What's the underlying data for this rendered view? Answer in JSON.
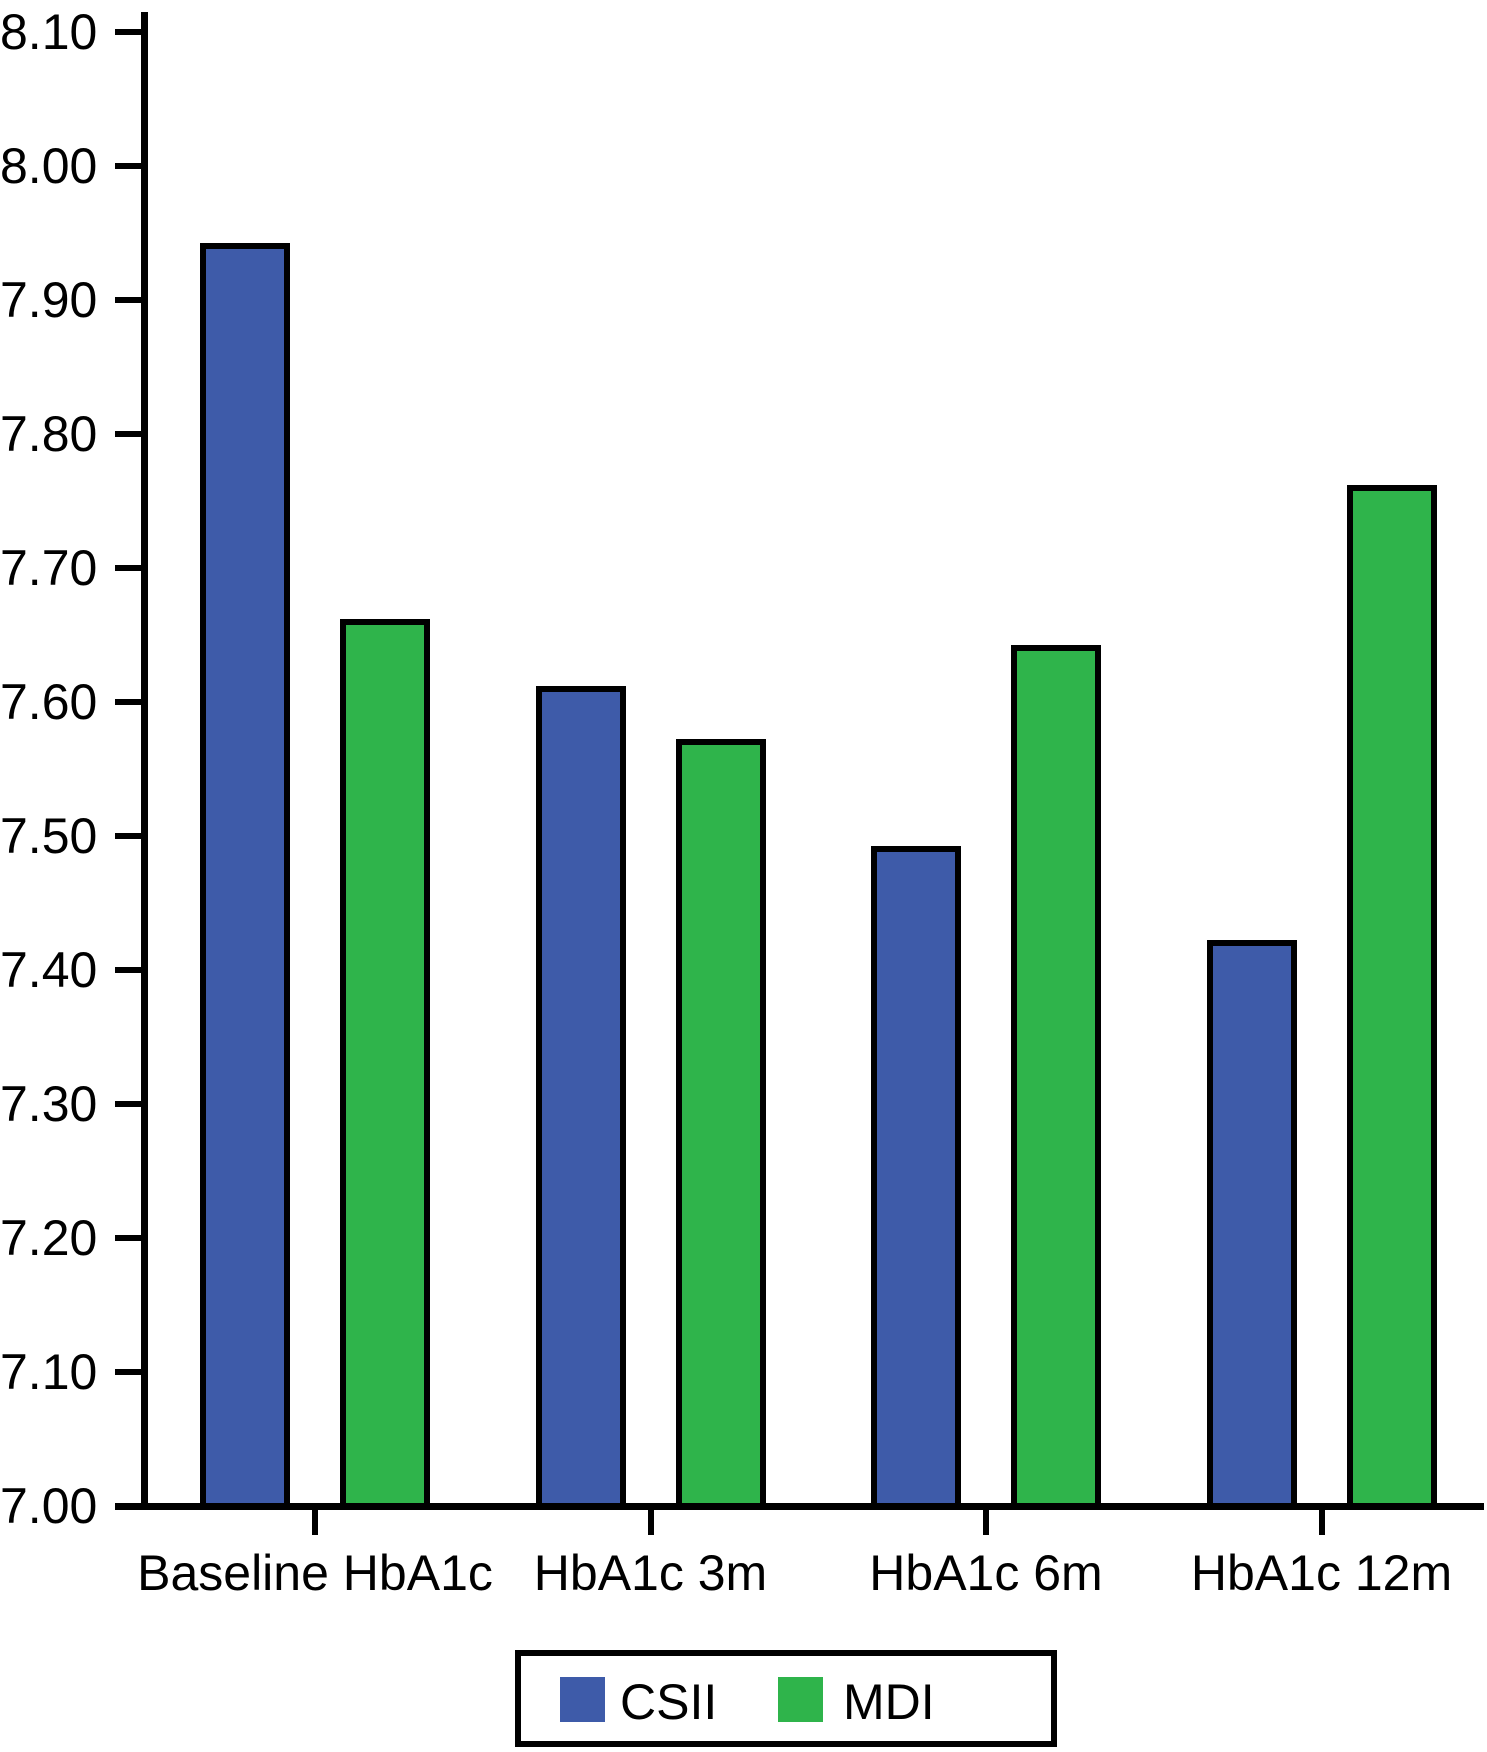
{
  "figure": {
    "background_color": "#FFFFFF",
    "axis_color": "#000000",
    "text_color": "#000000"
  },
  "chart_data": {
    "type": "bar",
    "title": "",
    "xlabel": "",
    "ylabel": "",
    "categories": [
      "Baseline HbA1c",
      "HbA1c 3m",
      "HbA1c 6m",
      "HbA1c 12m"
    ],
    "series": [
      {
        "name": "CSII",
        "color": "#3E5BA9",
        "values": [
          7.94,
          7.61,
          7.49,
          7.42
        ]
      },
      {
        "name": "MDI",
        "color": "#2FB44B",
        "values": [
          7.66,
          7.57,
          7.64,
          7.76
        ]
      }
    ],
    "ylim": [
      7.0,
      8.1
    ],
    "ytick_step": 0.1,
    "ytick_labels": [
      "7.00",
      "7.10",
      "7.20",
      "7.30",
      "7.40",
      "7.50",
      "7.60",
      "7.70",
      "7.80",
      "7.90",
      "8.00",
      "8.10"
    ],
    "grid": false,
    "bar_outline_color": "#000000",
    "legend_position": "bottom-center",
    "legend_items": [
      "CSII",
      "MDI"
    ]
  }
}
